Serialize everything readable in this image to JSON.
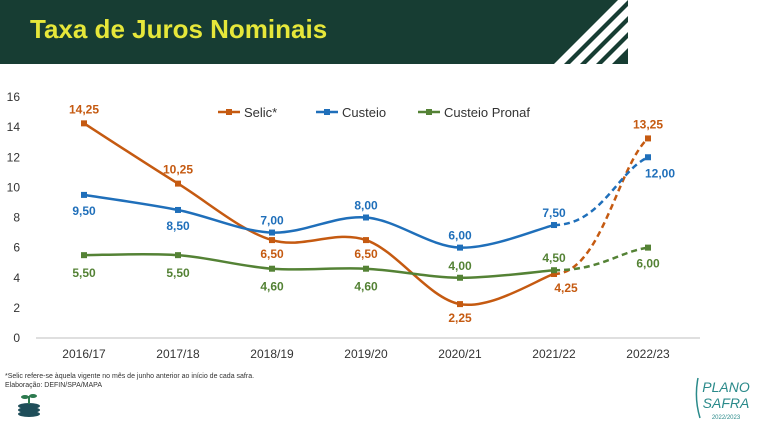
{
  "title": "Taxa de Juros Nominais",
  "footnote": "*Selic refere-se àquela vigente no mês de junho anterior ao início de cada safra.",
  "credit": "Elaboração: DEFIN/SPA/MAPA",
  "logo": {
    "line1": "PLANO",
    "line2": "SAFRA",
    "line3": "2022/2023"
  },
  "colors": {
    "header": "#173d33",
    "title": "#e6e73a",
    "selic": "#c55a11",
    "custeio": "#1f6fba",
    "pronaf": "#548235"
  },
  "chart_data": {
    "type": "line",
    "categories": [
      "2016/17",
      "2017/18",
      "2018/19",
      "2019/20",
      "2020/21",
      "2021/22",
      "2022/23"
    ],
    "ylim": [
      0,
      16
    ],
    "yticks": [
      "0",
      "2",
      "4",
      "6",
      "8",
      "10",
      "12",
      "14",
      "16"
    ],
    "grid": false,
    "legend_position": "top-center",
    "projected_from_index": 5,
    "series": [
      {
        "name": "Selic*",
        "color": "#c55a11",
        "values": [
          14.25,
          10.25,
          6.5,
          6.5,
          2.25,
          4.25,
          13.25
        ],
        "labels": [
          "14,25",
          "10,25",
          "6,50",
          "6,50",
          "2,25",
          "4,25",
          "13,25"
        ]
      },
      {
        "name": "Custeio",
        "color": "#1f6fba",
        "values": [
          9.5,
          8.5,
          7.0,
          8.0,
          6.0,
          7.5,
          12.0
        ],
        "labels": [
          "9,50",
          "8,50",
          "7,00",
          "8,00",
          "6,00",
          "7,50",
          "12,00"
        ]
      },
      {
        "name": "Custeio Pronaf",
        "color": "#548235",
        "values": [
          5.5,
          5.5,
          4.6,
          4.6,
          4.0,
          4.5,
          6.0
        ],
        "labels": [
          "5,50",
          "5,50",
          "4,60",
          "4,60",
          "4,00",
          "4,50",
          "6,00"
        ]
      }
    ]
  }
}
